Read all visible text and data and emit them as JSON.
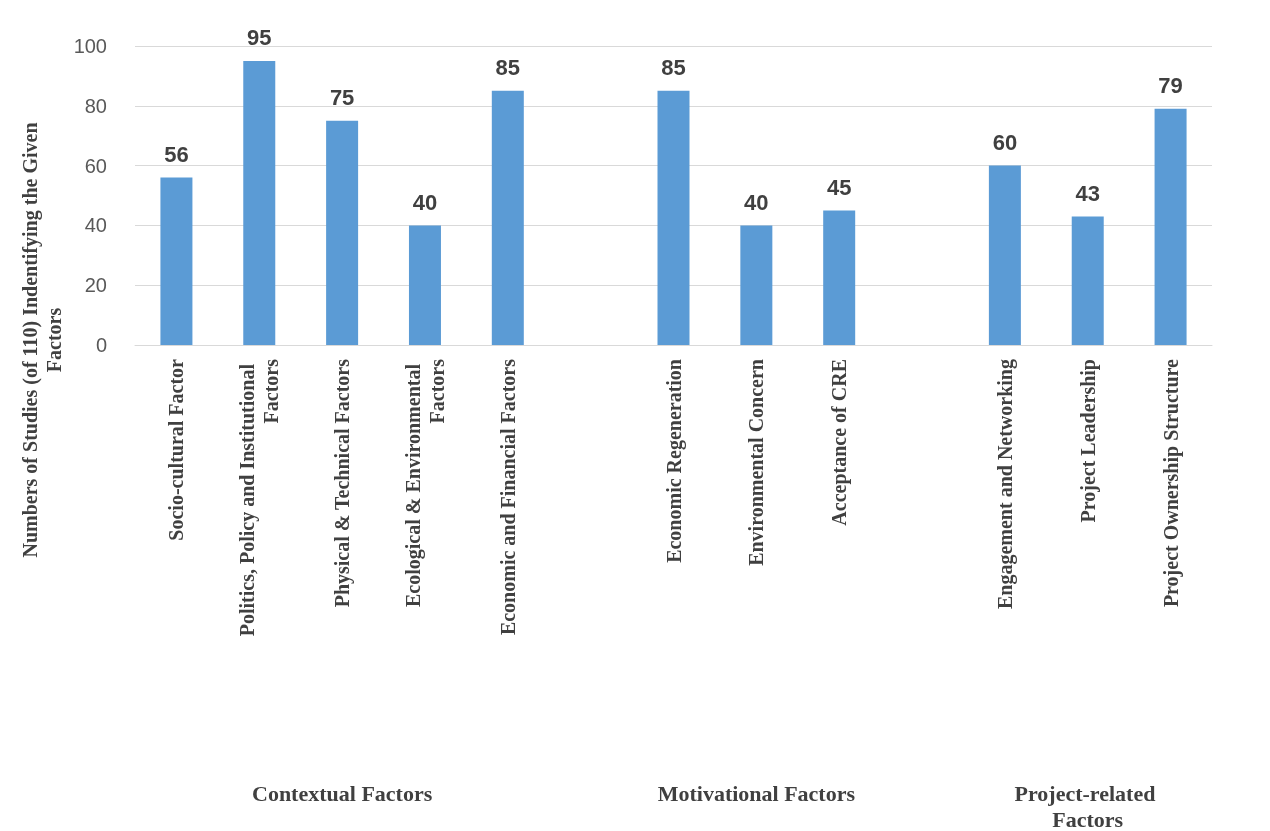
{
  "chart_data": {
    "type": "bar",
    "ylabel": "Numbers of Studies (of 110) Indentifying the Given Factors",
    "categories": [
      "Socio-cultural Factor",
      "Politics, Policy and Institutional Factors",
      "Physical & Technical Factors",
      "Ecological & Environmental Factors",
      "Economic and Financial Factors",
      null,
      "Economic Regeneration",
      "Environmental Concern",
      "Acceptance of CRE",
      null,
      "Engagement and Networking",
      "Project Leadership",
      "Project Ownership Structure"
    ],
    "values": [
      56,
      95,
      75,
      40,
      85,
      null,
      85,
      40,
      45,
      null,
      60,
      43,
      79
    ],
    "color": "#5b9bd5",
    "ylim": [
      0,
      100
    ],
    "yticks": [
      0,
      20,
      40,
      60,
      80,
      100
    ],
    "grid": "y",
    "data_labels": true,
    "annotations": [
      "Contextual Factors",
      "Motivational Factors",
      "Project-related Factors"
    ]
  }
}
